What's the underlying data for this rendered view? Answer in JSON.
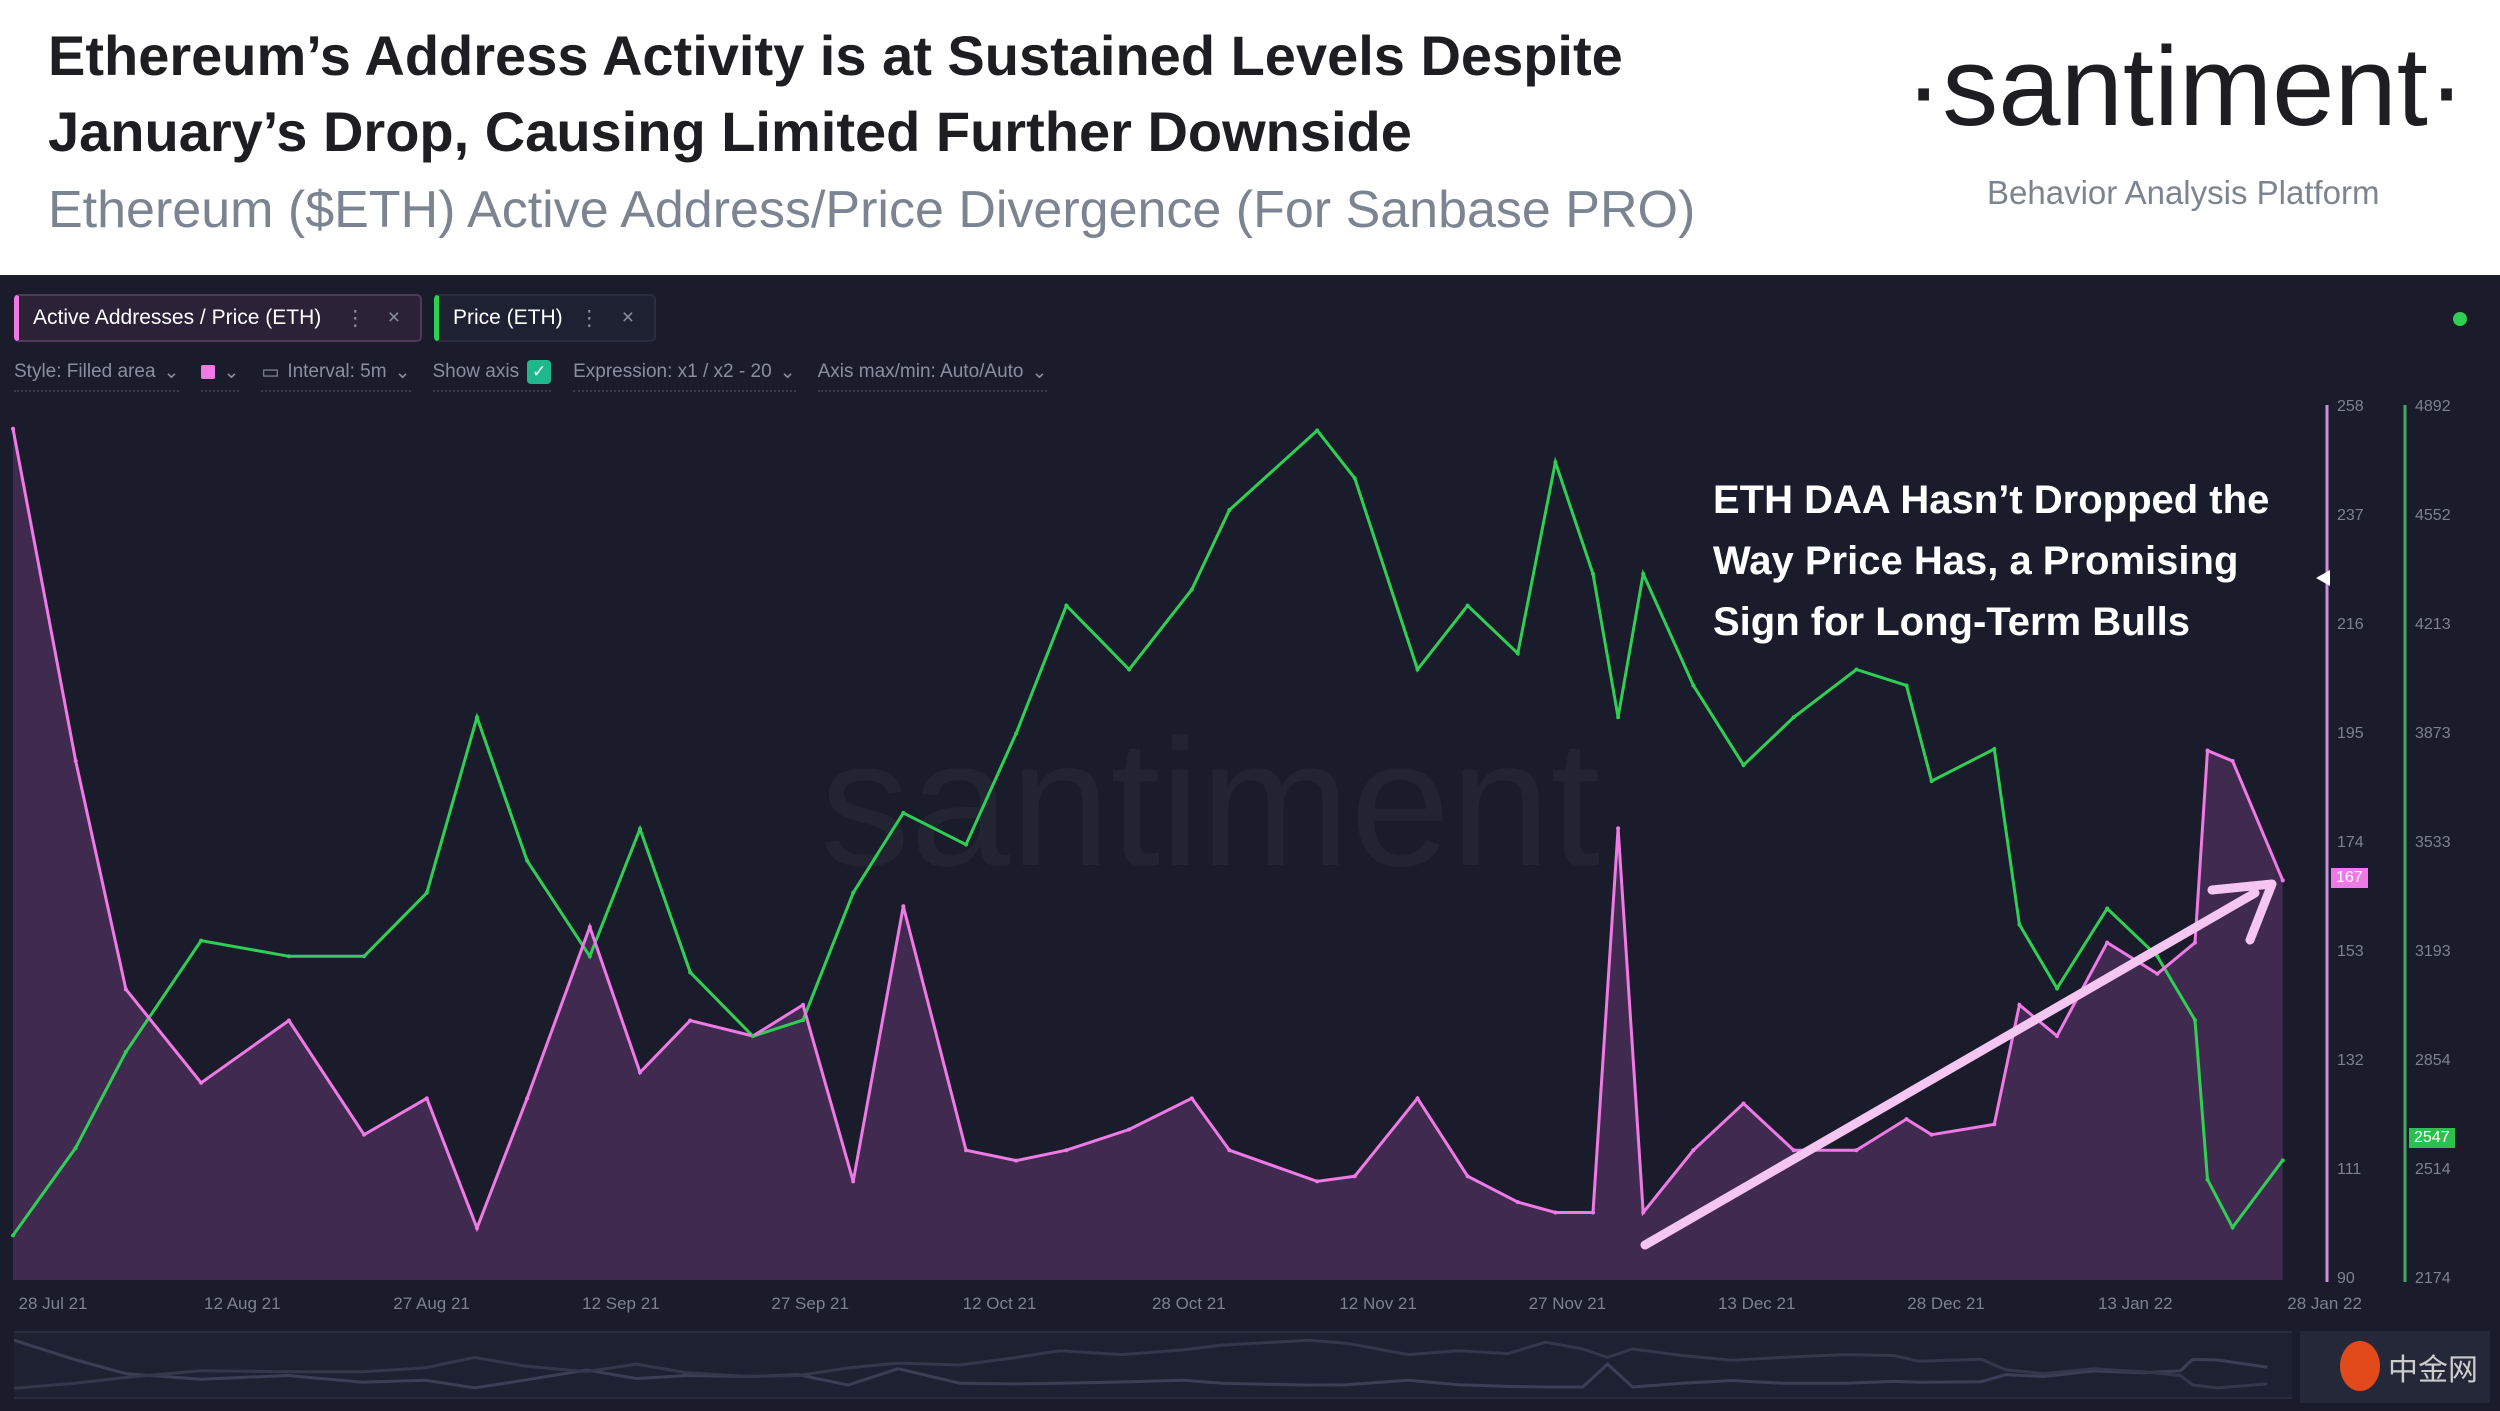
{
  "header": {
    "title": "Ethereum’s Address Activity is at Sustained Levels Despite January’s Drop, Causing Limited Further Downside",
    "subtitle": "Ethereum ($ETH) Active Address/Price Divergence (For Sanbase PRO)",
    "logo": "·santiment·",
    "tagline": "Behavior Analysis Platform"
  },
  "tabs": [
    {
      "label": "Active Addresses / Price (ETH)",
      "color": "#ef7ae6"
    },
    {
      "label": "Price (ETH)",
      "color": "#2fcf54"
    }
  ],
  "toolbar": {
    "style": "Style: Filled area",
    "interval": "Interval: 5m",
    "show_axis": "Show axis",
    "show_axis_checked": true,
    "expression": "Expression: x1 / x2 - 20",
    "axis_minmax": "Axis max/min: Auto/Auto"
  },
  "annotation": "ETH DAA Hasn’t Dropped the Way Price Has, a Promising Sign for Long-Term Bulls",
  "watermark": "santiment",
  "corner_logo": "中金网",
  "chart_data": {
    "type": "line",
    "x_ticks": [
      "28 Jul 21",
      "12 Aug 21",
      "27 Aug 21",
      "12 Sep 21",
      "27 Sep 21",
      "12 Oct 21",
      "28 Oct 21",
      "12 Nov 21",
      "27 Nov 21",
      "13 Dec 21",
      "28 Dec 21",
      "13 Jan 22",
      "28 Jan 22"
    ],
    "y_left": {
      "ticks": [
        258,
        237,
        216,
        195,
        174,
        153,
        132,
        111,
        90
      ],
      "range": [
        90,
        258
      ],
      "color": "#ef7ae6",
      "current": "167"
    },
    "y_right": {
      "ticks": [
        4892,
        4552,
        4213,
        3873,
        3533,
        3193,
        2854,
        2514,
        2174
      ],
      "range": [
        2174,
        4892
      ],
      "color": "#2fcf54",
      "current": "2547"
    },
    "x": [
      "2021-07-28",
      "2021-08-02",
      "2021-08-06",
      "2021-08-12",
      "2021-08-19",
      "2021-08-25",
      "2021-08-30",
      "2021-09-03",
      "2021-09-07",
      "2021-09-12",
      "2021-09-16",
      "2021-09-20",
      "2021-09-25",
      "2021-09-29",
      "2021-10-03",
      "2021-10-07",
      "2021-10-12",
      "2021-10-16",
      "2021-10-20",
      "2021-10-25",
      "2021-10-30",
      "2021-11-02",
      "2021-11-09",
      "2021-11-12",
      "2021-11-17",
      "2021-11-21",
      "2021-11-25",
      "2021-11-28",
      "2021-12-01",
      "2021-12-03",
      "2021-12-05",
      "2021-12-09",
      "2021-12-13",
      "2021-12-17",
      "2021-12-22",
      "2021-12-26",
      "2021-12-28",
      "2022-01-02",
      "2022-01-04",
      "2022-01-07",
      "2022-01-11",
      "2022-01-15",
      "2022-01-18",
      "2022-01-19",
      "2022-01-21",
      "2022-01-25"
    ],
    "series": [
      {
        "name": "Active Addresses / Price (ETH)",
        "style": "filled area",
        "color": "#ef7ae6",
        "values": [
          254,
          190,
          146,
          128,
          140,
          118,
          125,
          100,
          125,
          158,
          130,
          140,
          137,
          143,
          109,
          162,
          115,
          113,
          115,
          119,
          125,
          115,
          109,
          110,
          125,
          110,
          105,
          103,
          103,
          177,
          103,
          115,
          124,
          115,
          115,
          121,
          118,
          120,
          143,
          137,
          155,
          149,
          155,
          192,
          190,
          167
        ]
      },
      {
        "name": "Price (ETH)",
        "style": "line",
        "color": "#2fcf54",
        "values": [
          2313,
          2586,
          2885,
          3232,
          3183,
          3183,
          3381,
          3928,
          3481,
          3183,
          3580,
          3133,
          2934,
          2984,
          3381,
          3630,
          3531,
          3878,
          4276,
          4077,
          4326,
          4574,
          4822,
          4673,
          4077,
          4276,
          4127,
          4723,
          4375,
          3928,
          4375,
          4027,
          3779,
          3928,
          4077,
          4027,
          3729,
          3829,
          3282,
          3083,
          3332,
          3183,
          2984,
          2487,
          2338,
          2547
        ]
      }
    ],
    "grid": false
  }
}
